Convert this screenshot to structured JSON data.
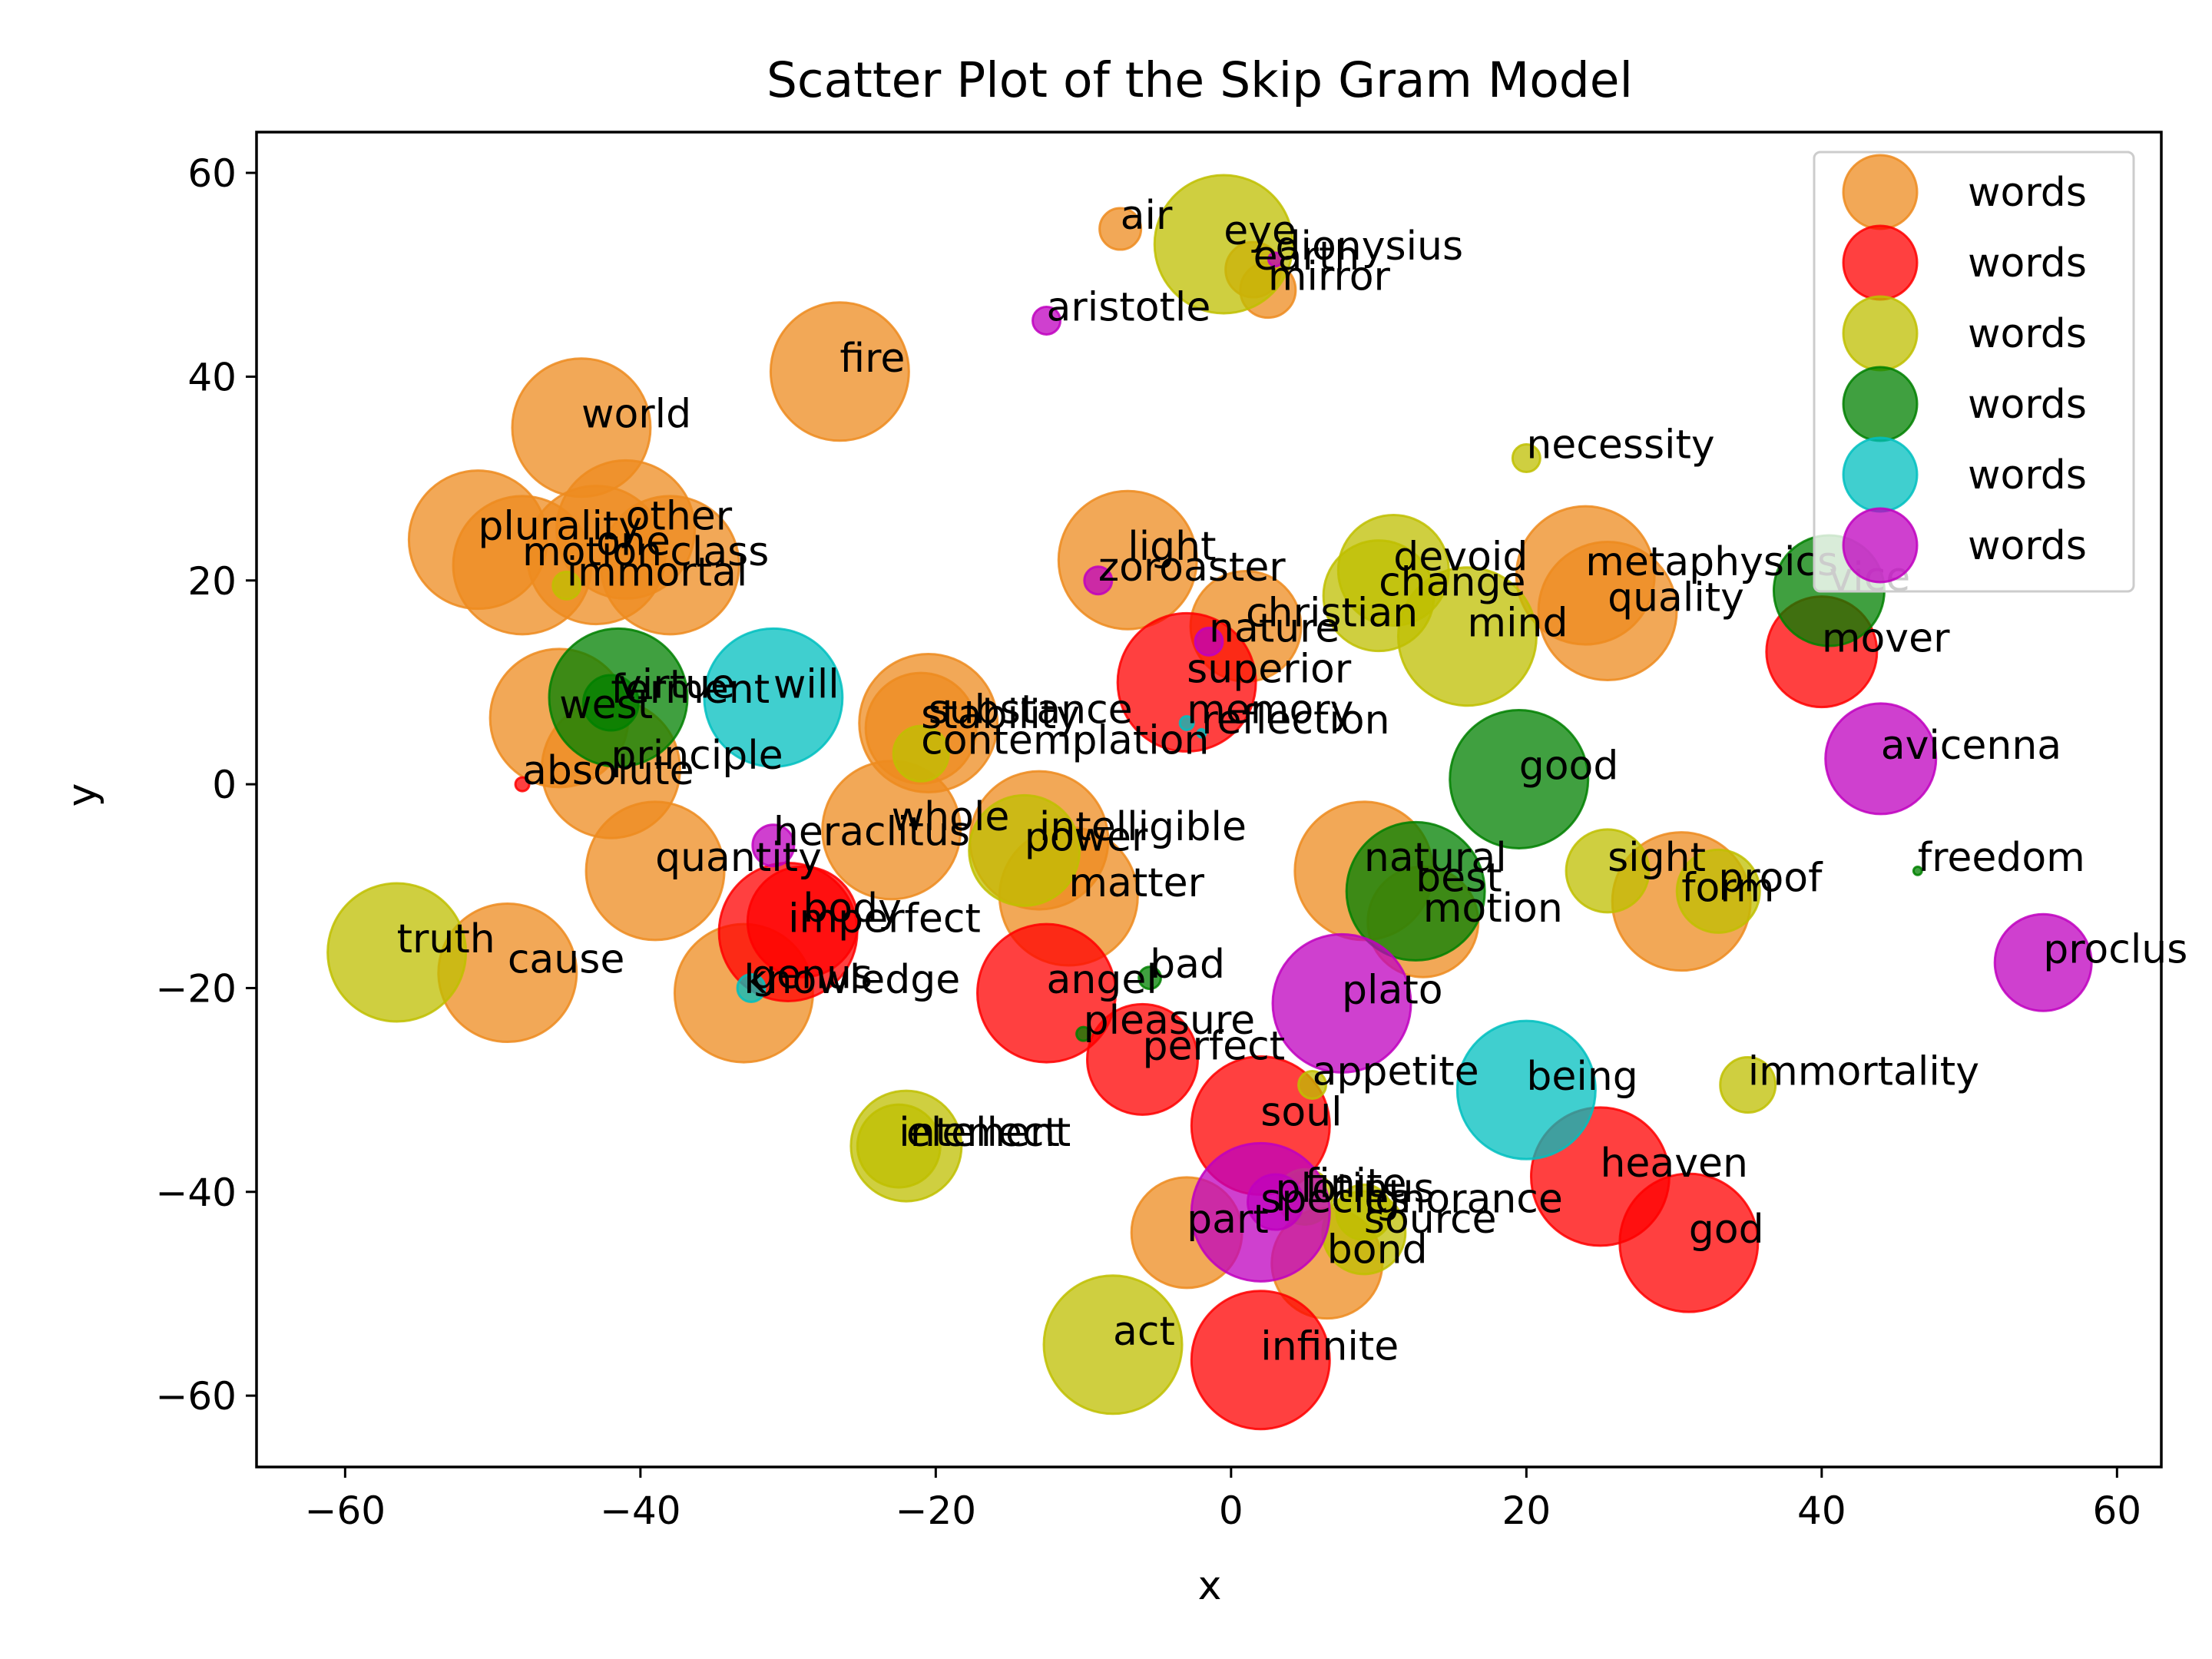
{
  "chart_data": {
    "type": "scatter",
    "title": "Scatter Plot of the Skip Gram Model",
    "xlabel": "x",
    "ylabel": "y",
    "xlim": [
      -66,
      63
    ],
    "ylim": [
      -67,
      64
    ],
    "xticks": [
      -60,
      -40,
      -20,
      0,
      20,
      40,
      60
    ],
    "yticks": [
      -60,
      -40,
      -20,
      0,
      20,
      40,
      60
    ],
    "xtick_labels": [
      "−60",
      "−40",
      "−20",
      "0",
      "20",
      "40",
      "60"
    ],
    "ytick_labels": [
      "−60",
      "−40",
      "−20",
      "0",
      "20",
      "40",
      "60"
    ],
    "grid": false,
    "legend_position": "top-right",
    "series": [
      {
        "name": "words",
        "color": "#ED8B1F",
        "points": [
          {
            "label": "air",
            "x": -7.5,
            "y": 54.5,
            "size": 1.5
          },
          {
            "label": "earth",
            "x": 1.5,
            "y": 50.5,
            "size": 2
          },
          {
            "label": "mirror",
            "x": 2.5,
            "y": 48.5,
            "size": 2
          },
          {
            "label": "fire",
            "x": -26.5,
            "y": 40.5,
            "size": 5
          },
          {
            "label": "world",
            "x": -44,
            "y": 35,
            "size": 5
          },
          {
            "label": "plurality",
            "x": -51,
            "y": 24,
            "size": 5
          },
          {
            "label": "other",
            "x": -41,
            "y": 25,
            "size": 5
          },
          {
            "label": "motion",
            "x": -48,
            "y": 21.5,
            "size": 5
          },
          {
            "label": "one",
            "x": -43,
            "y": 22.5,
            "size": 5
          },
          {
            "label": "class",
            "x": -38,
            "y": 21.5,
            "size": 5
          },
          {
            "label": "light",
            "x": -7,
            "y": 22,
            "size": 5
          },
          {
            "label": "christian",
            "x": 1,
            "y": 15.5,
            "size": 4
          },
          {
            "label": "metaphysics",
            "x": 24,
            "y": 20.5,
            "size": 5
          },
          {
            "label": "quality",
            "x": 25.5,
            "y": 17,
            "size": 5
          },
          {
            "label": "west",
            "x": -45.5,
            "y": 6.5,
            "size": 5
          },
          {
            "label": "principle",
            "x": -42,
            "y": 1.5,
            "size": 5
          },
          {
            "label": "substance",
            "x": -20.5,
            "y": 6,
            "size": 5
          },
          {
            "label": "stability",
            "x": -21,
            "y": 5.5,
            "size": 4
          },
          {
            "label": "whole",
            "x": -23,
            "y": -4.5,
            "size": 5
          },
          {
            "label": "quantity",
            "x": -39,
            "y": -8.5,
            "size": 5
          },
          {
            "label": "intelligible",
            "x": -13,
            "y": -5.5,
            "size": 5
          },
          {
            "label": "matter",
            "x": -11,
            "y": -11,
            "size": 5
          },
          {
            "label": "cause",
            "x": -49,
            "y": -18.5,
            "size": 5
          },
          {
            "label": "knowledge",
            "x": -33,
            "y": -20.5,
            "size": 5
          },
          {
            "label": "natural",
            "x": 9,
            "y": -8.5,
            "size": 5
          },
          {
            "label": "motion",
            "x": 13,
            "y": -13.5,
            "size": 4
          },
          {
            "label": "form",
            "x": 30.5,
            "y": -11.5,
            "size": 5
          },
          {
            "label": "part",
            "x": -3,
            "y": -44,
            "size": 4
          },
          {
            "label": "bond",
            "x": 6.5,
            "y": -47,
            "size": 4
          }
        ]
      },
      {
        "name": "words",
        "color": "#FF0000",
        "points": [
          {
            "label": "superior",
            "x": -3,
            "y": 10,
            "size": 5
          },
          {
            "label": "mover",
            "x": 40,
            "y": 13,
            "size": 4
          },
          {
            "label": "absolute",
            "x": -48,
            "y": 0,
            "size": 0.5
          },
          {
            "label": "imperfect",
            "x": -30,
            "y": -14.5,
            "size": 5
          },
          {
            "label": "body",
            "x": -29,
            "y": -13.5,
            "size": 4
          },
          {
            "label": "angel",
            "x": -12.5,
            "y": -20.5,
            "size": 5
          },
          {
            "label": "perfect",
            "x": -6,
            "y": -27,
            "size": 4
          },
          {
            "label": "soul",
            "x": 2,
            "y": -33.5,
            "size": 5
          },
          {
            "label": "heaven",
            "x": 25,
            "y": -38.5,
            "size": 5
          },
          {
            "label": "god",
            "x": 31,
            "y": -45,
            "size": 5
          },
          {
            "label": "infinite",
            "x": 2,
            "y": -56.5,
            "size": 5
          }
        ]
      },
      {
        "name": "words",
        "color": "#BFBF00",
        "points": [
          {
            "label": "eye",
            "x": -0.5,
            "y": 53,
            "size": 5
          },
          {
            "label": "necessity",
            "x": 20,
            "y": 32,
            "size": 1
          },
          {
            "label": "immortal",
            "x": -45,
            "y": 19.5,
            "size": 1
          },
          {
            "label": "devoid",
            "x": 11,
            "y": 21,
            "size": 4
          },
          {
            "label": "change",
            "x": 10,
            "y": 18.5,
            "size": 4
          },
          {
            "label": "mind",
            "x": 16,
            "y": 14.5,
            "size": 5
          },
          {
            "label": "contemplation",
            "x": -21,
            "y": 3,
            "size": 2
          },
          {
            "label": "power",
            "x": -14,
            "y": -6.5,
            "size": 4
          },
          {
            "label": "truth",
            "x": -56.5,
            "y": -16.5,
            "size": 5
          },
          {
            "label": "sight",
            "x": 25.5,
            "y": -8.5,
            "size": 3
          },
          {
            "label": "proof",
            "x": 33,
            "y": -10.5,
            "size": 3
          },
          {
            "label": "immortality",
            "x": 35,
            "y": -29.5,
            "size": 2
          },
          {
            "label": "appetite",
            "x": 5.5,
            "y": -29.5,
            "size": 1
          },
          {
            "label": "element",
            "x": -22,
            "y": -35.5,
            "size": 4
          },
          {
            "label": "intellect",
            "x": -22.5,
            "y": -35.5,
            "size": 3
          },
          {
            "label": "finite",
            "x": 5,
            "y": -40.5,
            "size": 2
          },
          {
            "label": "ignorance",
            "x": 9,
            "y": -42,
            "size": 2
          },
          {
            "label": "source",
            "x": 9,
            "y": -44,
            "size": 3
          },
          {
            "label": "act",
            "x": -8,
            "y": -55,
            "size": 5
          }
        ]
      },
      {
        "name": "words",
        "color": "#008000",
        "points": [
          {
            "label": "virtue",
            "x": -41.5,
            "y": 8.5,
            "size": 5
          },
          {
            "label": "ferment",
            "x": -42,
            "y": 8,
            "size": 2
          },
          {
            "label": "good",
            "x": 19.5,
            "y": 0.5,
            "size": 5
          },
          {
            "label": "best",
            "x": 12.5,
            "y": -10.5,
            "size": 5
          },
          {
            "label": "vice",
            "x": 40.5,
            "y": 19,
            "size": 4
          },
          {
            "label": "bad",
            "x": -5.5,
            "y": -19,
            "size": 0.8
          },
          {
            "label": "pleasure",
            "x": -10,
            "y": -24.5,
            "size": 0.5
          },
          {
            "label": "freedom",
            "x": 46.5,
            "y": -8.5,
            "size": 0.3
          }
        ]
      },
      {
        "name": "words",
        "color": "#00BFBF",
        "points": [
          {
            "label": "will",
            "x": -31,
            "y": 8.5,
            "size": 5
          },
          {
            "label": "memory",
            "x": -3,
            "y": 6,
            "size": 0.5
          },
          {
            "label": "reflection",
            "x": -2,
            "y": 5,
            "size": 0.3
          },
          {
            "label": "genus",
            "x": -32.5,
            "y": -20,
            "size": 1
          },
          {
            "label": "being",
            "x": 20,
            "y": -30,
            "size": 5
          }
        ]
      },
      {
        "name": "words",
        "color": "#BF00BF",
        "points": [
          {
            "label": "dionysius",
            "x": 3,
            "y": 51.5,
            "size": 0.5
          },
          {
            "label": "aristotle",
            "x": -12.5,
            "y": 45.5,
            "size": 1
          },
          {
            "label": "zoroaster",
            "x": -9,
            "y": 20,
            "size": 1
          },
          {
            "label": "nature",
            "x": -1.5,
            "y": 14,
            "size": 1
          },
          {
            "label": "avicenna",
            "x": 44,
            "y": 2.5,
            "size": 4
          },
          {
            "label": "heraclitus",
            "x": -31,
            "y": -6,
            "size": 1.5
          },
          {
            "label": "plato",
            "x": 7.5,
            "y": -21.5,
            "size": 5
          },
          {
            "label": "proclus",
            "x": 55,
            "y": -17.5,
            "size": 3.5
          },
          {
            "label": "plotinus",
            "x": 3,
            "y": -41,
            "size": 2
          },
          {
            "label": "species",
            "x": 2,
            "y": -42,
            "size": 5
          }
        ]
      }
    ]
  }
}
